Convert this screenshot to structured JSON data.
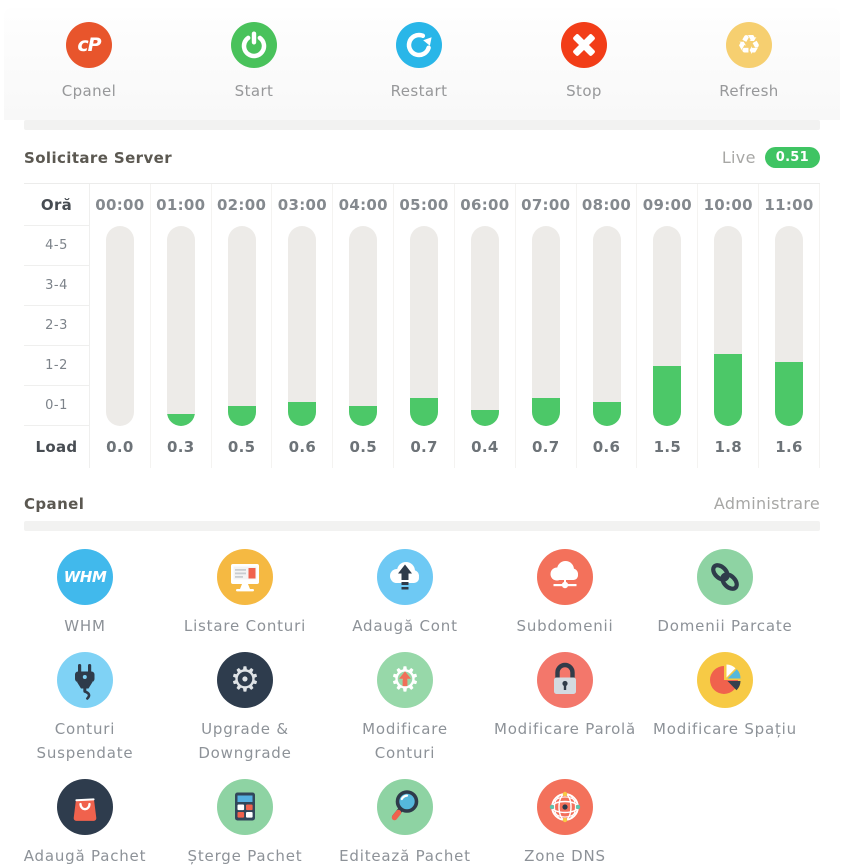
{
  "toolbar": {
    "items": [
      {
        "label": "Cpanel",
        "icon": "cpanel-logo-icon",
        "logo_text": "cP",
        "color": "#e8552c"
      },
      {
        "label": "Start",
        "icon": "power-icon",
        "color": "#49c25b"
      },
      {
        "label": "Restart",
        "icon": "restart-arrow-icon",
        "color": "#29b6e8"
      },
      {
        "label": "Stop",
        "icon": "stop-x-icon",
        "color": "#f23d18"
      },
      {
        "label": "Refresh",
        "icon": "recycle-icon",
        "color": "#f6cf70"
      }
    ]
  },
  "server_section": {
    "title": "Solicitare Server",
    "live_label": "Live",
    "live_value": "0.51",
    "live_badge_color": "#3fc463"
  },
  "chart_data": {
    "type": "bar",
    "title": "Solicitare Server",
    "corner_label": "Oră",
    "row_labels": [
      "4-5",
      "3-4",
      "2-3",
      "1-2",
      "0-1"
    ],
    "load_label": "Load",
    "categories": [
      "00:00",
      "01:00",
      "02:00",
      "03:00",
      "04:00",
      "05:00",
      "06:00",
      "07:00",
      "08:00",
      "09:00",
      "10:00",
      "11:00"
    ],
    "values": [
      0.0,
      0.3,
      0.5,
      0.6,
      0.5,
      0.7,
      0.4,
      0.7,
      0.6,
      1.5,
      1.8,
      1.6
    ],
    "value_labels": [
      "0.0",
      "0.3",
      "0.5",
      "0.6",
      "0.5",
      "0.7",
      "0.4",
      "0.7",
      "0.6",
      "1.5",
      "1.8",
      "1.6"
    ],
    "ylim": [
      0,
      5
    ],
    "xlabel": "Oră",
    "ylabel": "Load",
    "grid": false,
    "legend": false,
    "bar_color": "#4cc868",
    "track_color": "#edebe8"
  },
  "cpanel_section": {
    "title": "Cpanel",
    "action_label": "Administrare",
    "items": [
      {
        "label": "WHM",
        "icon": "whm-logo-icon",
        "logo_text": "WHM",
        "color": "#41b9ec"
      },
      {
        "label": "Listare Conturi",
        "icon": "monitor-icon",
        "color": "#f5b942"
      },
      {
        "label": "Adaugă Cont",
        "icon": "cloud-upload-icon",
        "color": "#6ec9f4"
      },
      {
        "label": "Subdomenii",
        "icon": "cloud-network-icon",
        "color": "#f3715b"
      },
      {
        "label": "Domenii Parcate",
        "icon": "chain-link-icon",
        "color": "#8ed3a3"
      },
      {
        "label": "Conturi Suspendate",
        "icon": "plug-icon",
        "color": "#7fd2f5"
      },
      {
        "label": "Upgrade & Downgrade",
        "icon": "gear-icon",
        "color": "#2e3c4d"
      },
      {
        "label": "Modificare Conturi",
        "icon": "gear-up-arrow-icon",
        "color": "#97d8a9"
      },
      {
        "label": "Modificare Parolă",
        "icon": "padlock-icon",
        "color": "#f3776b"
      },
      {
        "label": "Modificare Spațiu",
        "icon": "pie-chart-icon",
        "color": "#f7ca45"
      },
      {
        "label": "Adaugă Pachet",
        "icon": "shopping-bag-icon",
        "color": "#2e3c4d"
      },
      {
        "label": "Șterge Pachet",
        "icon": "calculator-icon",
        "color": "#8ed3a3"
      },
      {
        "label": "Editează Pachet",
        "icon": "magnifier-icon",
        "color": "#8ed3a3"
      },
      {
        "label": "Zone DNS",
        "icon": "globe-icon",
        "color": "#f3715b"
      }
    ]
  }
}
